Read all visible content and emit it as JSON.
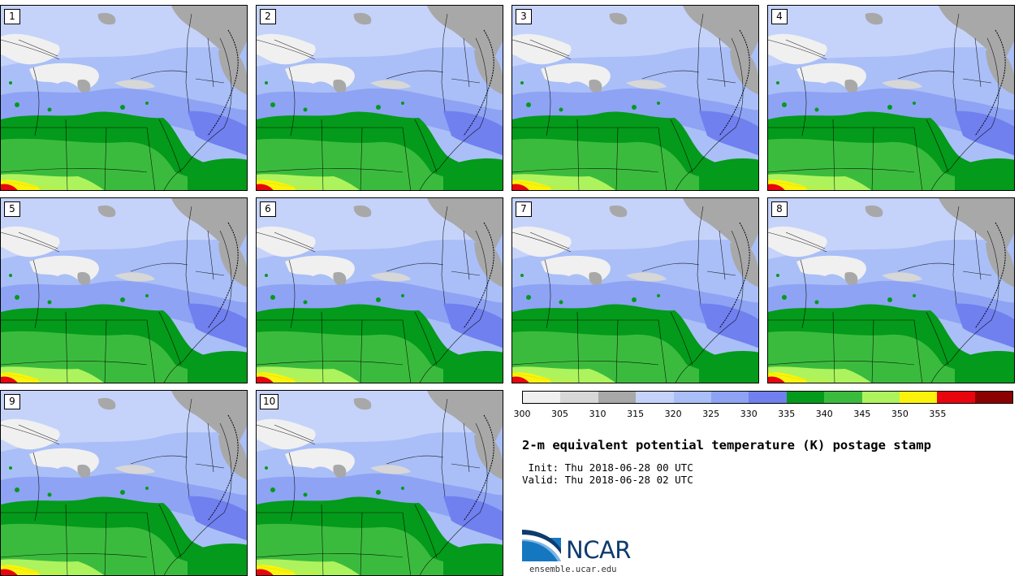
{
  "members": [
    "1",
    "2",
    "3",
    "4",
    "5",
    "6",
    "7",
    "8",
    "9",
    "10"
  ],
  "colorbar": {
    "colors": [
      "#f0f0f0",
      "#d7d7d7",
      "#a8a8a8",
      "#c5d3fa",
      "#aabff7",
      "#8ea3f3",
      "#7080ef",
      "#049a1b",
      "#3bbb3d",
      "#adf35e",
      "#fbf30c",
      "#e8050e",
      "#8b0000"
    ],
    "ticks": [
      "300",
      "305",
      "310",
      "315",
      "320",
      "325",
      "330",
      "335",
      "340",
      "345",
      "350",
      "355"
    ]
  },
  "title": "2-m equivalent potential temperature (K) postage stamp",
  "init": " Init: Thu 2018-06-28 00 UTC",
  "valid": "Valid: Thu 2018-06-28 02 UTC",
  "logo": {
    "text": "NCAR",
    "site": "ensemble.ucar.edu"
  }
}
